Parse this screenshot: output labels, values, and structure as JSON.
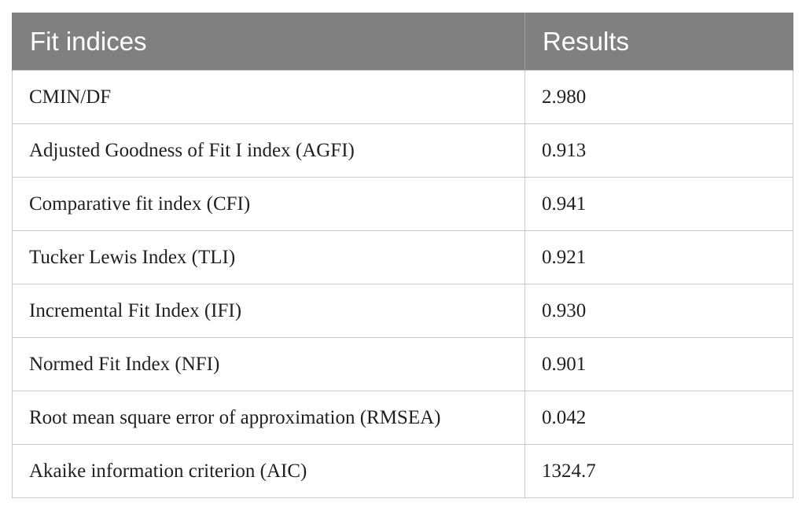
{
  "table": {
    "headers": [
      "Fit indices",
      "Results"
    ],
    "rows": [
      {
        "index": "CMIN/DF",
        "result": "2.980"
      },
      {
        "index": "Adjusted Goodness of Fit I index (AGFI)",
        "result": "0.913"
      },
      {
        "index": "Comparative fit index (CFI)",
        "result": "0.941"
      },
      {
        "index": "Tucker Lewis Index (TLI)",
        "result": "0.921"
      },
      {
        "index": "Incremental Fit Index (IFI)",
        "result": "0.930"
      },
      {
        "index": "Normed Fit Index (NFI)",
        "result": "0.901"
      },
      {
        "index": "Root mean square error of approximation (RMSEA)",
        "result": "0.042"
      },
      {
        "index": "Akaike information criterion (AIC)",
        "result": "1324.7"
      }
    ]
  },
  "colors": {
    "header_bg": "#7f807f",
    "header_text": "#ffffff",
    "border": "#c8c8c8"
  }
}
